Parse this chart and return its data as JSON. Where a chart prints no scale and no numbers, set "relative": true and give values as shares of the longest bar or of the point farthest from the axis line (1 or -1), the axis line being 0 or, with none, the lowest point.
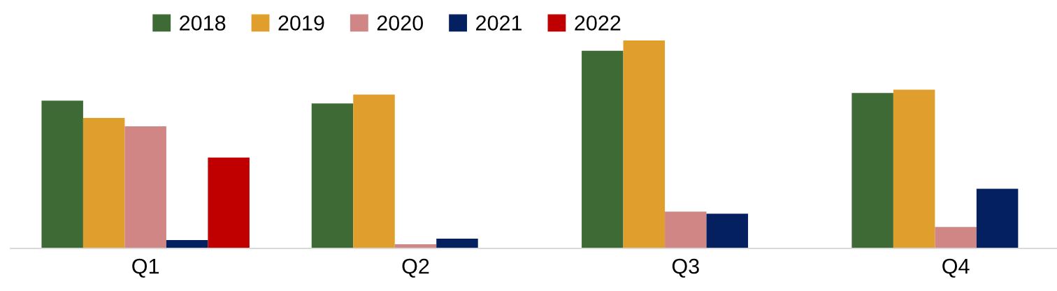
{
  "chart_data": {
    "type": "bar",
    "relative": true,
    "categories": [
      "Q1",
      "Q2",
      "Q3",
      "Q4"
    ],
    "series": [
      {
        "name": "2018",
        "color": "#3e6b35",
        "values": [
          0.71,
          0.697,
          0.95,
          0.747
        ]
      },
      {
        "name": "2019",
        "color": "#e09f2d",
        "values": [
          0.627,
          0.74,
          1.0,
          0.763
        ]
      },
      {
        "name": "2020",
        "color": "#d18686",
        "values": [
          0.587,
          0.02,
          0.177,
          0.103
        ]
      },
      {
        "name": "2021",
        "color": "#042060",
        "values": [
          0.04,
          0.047,
          0.167,
          0.287
        ]
      },
      {
        "name": "2022",
        "color": "#c00000",
        "values": [
          0.437,
          null,
          null,
          null
        ]
      }
    ],
    "legend": "top",
    "grid": false
  }
}
